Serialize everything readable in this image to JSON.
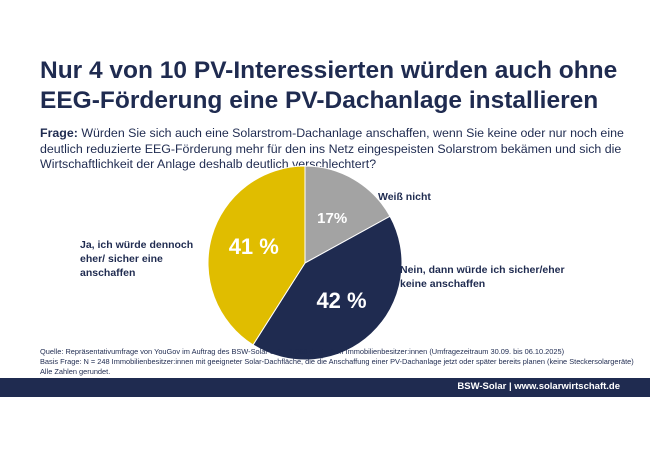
{
  "chart_data": {
    "type": "pie",
    "title": [
      "Nur 4 von 10 PV-Interessierten würden auch ohne",
      "EEG-Förderung eine PV-Dachanlage installieren"
    ],
    "question_label": "Frage:",
    "question": "Würden Sie sich auch eine Solarstrom-Dachanlage anschaffen, wenn Sie keine oder nur noch eine deutlich reduzierte EEG-Förderung mehr für den ins Netz eingespeisten Solarstrom bekämen und sich die Wirtschaftlichkeit der Anlage deshalb deutlich verschlechtert?",
    "categories": [
      "Weiß nicht",
      "Nein, dann würde ich sicher/eher keine anschaffen",
      "Ja, ich würde dennoch eher/ sicher eine anschaffen"
    ],
    "values": [
      17,
      42,
      41
    ],
    "value_labels": [
      "17%",
      "42 %",
      "41 %"
    ],
    "colors": [
      "#a3a3a3",
      "#1f2b50",
      "#e0bd00"
    ],
    "notes": [
      "Quelle: Repräsentativumfrage von YouGov im Auftrag des BSW-Solar unter 1.068 deutschen Immobilienbesitzer:innen (Umfragezeitraum 30.09. bis 06.10.2025)",
      "Basis Frage: N = 248 Immobilienbesitzer:innen mit geeigneter Solar-Dachfläche, die die Anschaffung einer PV-Dachanlage jetzt oder später bereits planen (keine Steckersolargeräte)",
      "Alle Zahlen gerundet."
    ],
    "footer": "BSW-Solar | www.solarwirtschaft.de"
  }
}
